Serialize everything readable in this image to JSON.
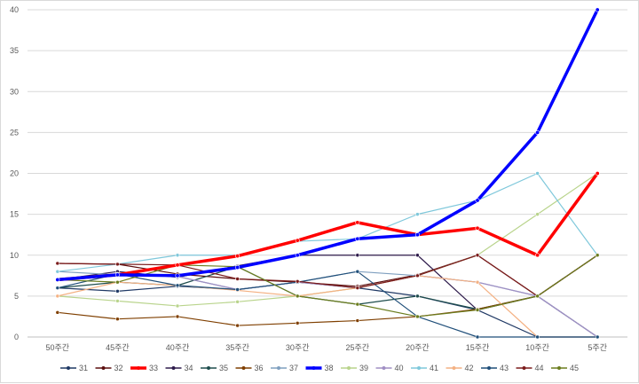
{
  "chart_data": {
    "type": "line",
    "title": "",
    "xlabel": "",
    "ylabel": "",
    "categories": [
      "50주간",
      "45주간",
      "40주간",
      "35주간",
      "30주간",
      "25주간",
      "20주간",
      "15주간",
      "10주간",
      "5주간"
    ],
    "ylim": [
      0,
      40
    ],
    "yticks": [
      0,
      5,
      10,
      15,
      20,
      25,
      30,
      35,
      40
    ],
    "grid": true,
    "legend_position": "bottom",
    "series": [
      {
        "name": "31",
        "color": "#1f3864",
        "width": 1.2,
        "values": [
          6,
          5.6,
          6.2,
          5.8,
          6.7,
          6,
          5,
          3.3,
          0,
          0
        ]
      },
      {
        "name": "32",
        "color": "#5b0f0f",
        "width": 1.2,
        "values": [
          9,
          8.9,
          7.7,
          7.1,
          6.7,
          6.2,
          7.6,
          10,
          5,
          10
        ]
      },
      {
        "name": "33",
        "color": "#ff0000",
        "width": 3.5,
        "values": [
          7,
          7.6,
          8.8,
          9.9,
          11.8,
          14,
          12.5,
          13.3,
          10,
          20
        ]
      },
      {
        "name": "34",
        "color": "#2e1b4b",
        "width": 1.2,
        "values": [
          7,
          8,
          7.3,
          8.7,
          10,
          10,
          10,
          3.3,
          5,
          0
        ]
      },
      {
        "name": "35",
        "color": "#1e4d4d",
        "width": 1.2,
        "values": [
          6,
          6.7,
          6.3,
          8.6,
          5,
          4,
          5,
          3.4,
          5,
          10
        ]
      },
      {
        "name": "36",
        "color": "#7f3f00",
        "width": 1.2,
        "values": [
          3,
          2.2,
          2.5,
          1.4,
          1.7,
          2,
          2.5,
          3.4,
          5,
          10
        ]
      },
      {
        "name": "37",
        "color": "#7f9fbf",
        "width": 1.2,
        "values": [
          8,
          7.6,
          7.4,
          5.8,
          6.7,
          8,
          7.5,
          6.7,
          5,
          0
        ]
      },
      {
        "name": "38",
        "color": "#0000ff",
        "width": 3.5,
        "values": [
          7,
          7.6,
          7.5,
          8.5,
          10,
          12,
          12.5,
          16.7,
          25,
          40
        ]
      },
      {
        "name": "39",
        "color": "#b9d48c",
        "width": 1.2,
        "values": [
          5,
          4.4,
          3.8,
          4.3,
          5,
          6,
          7.5,
          10,
          15,
          20
        ]
      },
      {
        "name": "40",
        "color": "#a08fc4",
        "width": 1.2,
        "values": [
          7,
          7.6,
          7.4,
          5.8,
          6.7,
          6,
          7.5,
          6.7,
          5,
          0
        ]
      },
      {
        "name": "41",
        "color": "#7fc8db",
        "width": 1.2,
        "values": [
          8,
          8.9,
          10,
          10,
          11.7,
          12,
          15,
          16.7,
          20,
          10
        ]
      },
      {
        "name": "42",
        "color": "#f4b183",
        "width": 1.2,
        "values": [
          5,
          6.7,
          6.3,
          5.7,
          5,
          6,
          7.5,
          6.7,
          0,
          0
        ]
      },
      {
        "name": "43",
        "color": "#1f4e79",
        "width": 1.2,
        "values": [
          6,
          7.7,
          6.3,
          5.8,
          6.7,
          8,
          2.5,
          0,
          0,
          0
        ]
      },
      {
        "name": "44",
        "color": "#7b1c1c",
        "width": 1.2,
        "values": [
          9,
          8.9,
          8.8,
          7.1,
          6.8,
          6,
          7.5,
          10,
          5,
          10
        ]
      },
      {
        "name": "45",
        "color": "#6b7d1e",
        "width": 1.2,
        "values": [
          7,
          6.7,
          8.8,
          8.6,
          5,
          4,
          2.5,
          3.3,
          5,
          10
        ]
      }
    ]
  }
}
